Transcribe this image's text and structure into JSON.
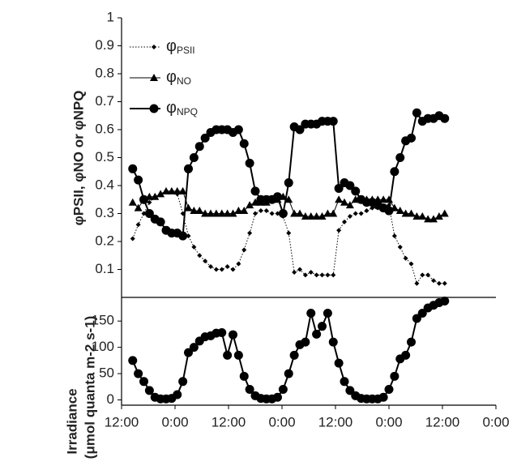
{
  "chart_data": [
    {
      "type": "line",
      "ylabel": "φPSII, φNO or φNPQ",
      "x": [
        2.5,
        3.75,
        5,
        6.25,
        7.5,
        8.75,
        10,
        11.25,
        12.5,
        13.75,
        15,
        16.25,
        17.5,
        18.75,
        20,
        21.25,
        22.5,
        23.75,
        25,
        26.25,
        27.5,
        28.75,
        30,
        31.25,
        32.5,
        33.75,
        35,
        36.25,
        37.5,
        38.75,
        40,
        41.25,
        42.5,
        43.75,
        45,
        46.25,
        47.5,
        48.75,
        50,
        51.25,
        52.5,
        53.75,
        55,
        56.25,
        57.5,
        58.75,
        60,
        61.25,
        62.5,
        63.75,
        65,
        66.25,
        67.5,
        68.75,
        70,
        71.25,
        72.5
      ],
      "xlim": [
        0,
        84
      ],
      "ylim": [
        0,
        1
      ],
      "yticks": [
        0.1,
        0.2,
        0.3,
        0.4,
        0.5,
        0.6,
        0.7,
        0.8,
        0.9,
        1
      ],
      "legend": "upper left",
      "series": [
        {
          "name": "φPSII",
          "color": "#000000",
          "marker": "diamond",
          "line_style": "dotted",
          "values": [
            0.21,
            0.26,
            0.3,
            0.34,
            0.36,
            0.37,
            0.38,
            0.38,
            0.37,
            0.3,
            0.22,
            0.18,
            0.15,
            0.13,
            0.11,
            0.1,
            0.1,
            0.11,
            0.1,
            0.12,
            0.17,
            0.23,
            0.3,
            0.31,
            0.31,
            0.3,
            0.3,
            0.29,
            0.23,
            0.09,
            0.1,
            0.08,
            0.09,
            0.08,
            0.08,
            0.08,
            0.08,
            0.24,
            0.27,
            0.29,
            0.3,
            0.3,
            0.31,
            0.32,
            0.32,
            0.32,
            0.33,
            0.22,
            0.18,
            0.14,
            0.12,
            0.05,
            0.08,
            0.08,
            0.06,
            0.05,
            0.05
          ]
        },
        {
          "name": "φNO",
          "color": "#000000",
          "marker": "triangle",
          "line_style": "solid",
          "values": [
            0.34,
            0.32,
            0.35,
            0.36,
            0.36,
            0.37,
            0.38,
            0.38,
            0.38,
            0.38,
            0.32,
            0.31,
            0.31,
            0.3,
            0.3,
            0.3,
            0.3,
            0.3,
            0.3,
            0.31,
            0.31,
            0.33,
            0.34,
            0.34,
            0.34,
            0.35,
            0.35,
            0.36,
            0.35,
            0.3,
            0.3,
            0.29,
            0.29,
            0.29,
            0.29,
            0.3,
            0.3,
            0.35,
            0.34,
            0.33,
            0.35,
            0.35,
            0.35,
            0.35,
            0.35,
            0.35,
            0.35,
            0.32,
            0.31,
            0.3,
            0.3,
            0.29,
            0.29,
            0.28,
            0.28,
            0.29,
            0.3
          ]
        },
        {
          "name": "φNPQ",
          "color": "#000000",
          "marker": "circle",
          "line_style": "solid",
          "values": [
            0.46,
            0.42,
            0.35,
            0.3,
            0.28,
            0.27,
            0.24,
            0.23,
            0.23,
            0.22,
            0.46,
            0.5,
            0.54,
            0.57,
            0.59,
            0.6,
            0.6,
            0.6,
            0.59,
            0.6,
            0.55,
            0.48,
            0.38,
            0.35,
            0.35,
            0.35,
            0.36,
            0.3,
            0.41,
            0.61,
            0.6,
            0.62,
            0.62,
            0.62,
            0.63,
            0.63,
            0.63,
            0.39,
            0.41,
            0.4,
            0.38,
            0.35,
            0.34,
            0.34,
            0.33,
            0.32,
            0.31,
            0.45,
            0.5,
            0.56,
            0.57,
            0.66,
            0.63,
            0.64,
            0.64,
            0.65,
            0.64
          ]
        }
      ]
    },
    {
      "type": "line",
      "ylabel": [
        "Irradiance",
        "(μmol quanta m-2 s-1)"
      ],
      "x": [
        2.5,
        3.75,
        5,
        6.25,
        7.5,
        8.75,
        10,
        11.25,
        12.5,
        13.75,
        15,
        16.25,
        17.5,
        18.75,
        20,
        21.25,
        22.5,
        23.75,
        25,
        26.25,
        27.5,
        28.75,
        30,
        31.25,
        32.5,
        33.75,
        35,
        36.25,
        37.5,
        38.75,
        40,
        41.25,
        42.5,
        43.75,
        45,
        46.25,
        47.5,
        48.75,
        50,
        51.25,
        52.5,
        53.75,
        55,
        56.25,
        57.5,
        58.75,
        60,
        61.25,
        62.5,
        63.75,
        65,
        66.25,
        67.5,
        68.75,
        70,
        71.25,
        72.5
      ],
      "xlim": [
        0,
        84
      ],
      "ylim": [
        -10,
        195
      ],
      "yticks": [
        0,
        50,
        100,
        150
      ],
      "xticks": [
        {
          "value": 0,
          "label": "12:00"
        },
        {
          "value": 12,
          "label": "0:00"
        },
        {
          "value": 24,
          "label": "12:00"
        },
        {
          "value": 36,
          "label": "0:00"
        },
        {
          "value": 48,
          "label": "12:00"
        },
        {
          "value": 60,
          "label": "0:00"
        },
        {
          "value": 72,
          "label": "12:00"
        },
        {
          "value": 84,
          "label": "0:00"
        }
      ],
      "series": [
        {
          "color": "#000000",
          "marker": "circle",
          "line_style": "solid",
          "values": [
            75,
            50,
            35,
            18,
            5,
            2,
            2,
            3,
            10,
            35,
            90,
            100,
            112,
            120,
            122,
            127,
            128,
            85,
            124,
            85,
            45,
            20,
            8,
            3,
            2,
            2,
            5,
            20,
            50,
            85,
            105,
            110,
            165,
            125,
            140,
            165,
            110,
            70,
            35,
            18,
            8,
            3,
            2,
            2,
            2,
            5,
            20,
            45,
            78,
            85,
            110,
            155,
            165,
            175,
            180,
            185,
            188
          ]
        }
      ]
    }
  ]
}
